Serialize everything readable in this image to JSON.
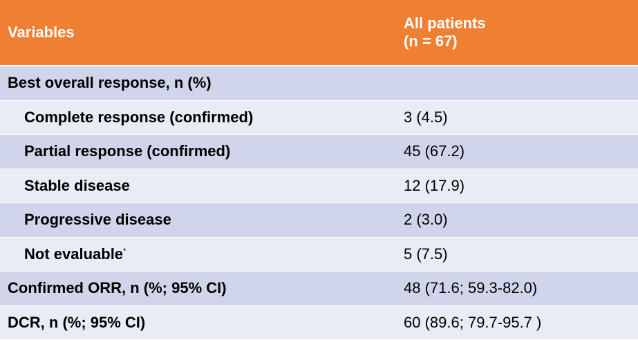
{
  "header": {
    "col1": "Variables",
    "col2_line1": "All patients",
    "col2_line2": "(n = 67)"
  },
  "rows": [
    {
      "label": "Best overall response, n (%)",
      "value": ""
    },
    {
      "label": "Complete response (confirmed)",
      "value": "3 (4.5)"
    },
    {
      "label": "Partial response (confirmed)",
      "value": "45 (67.2)"
    },
    {
      "label": "Stable disease",
      "value": "12 (17.9)"
    },
    {
      "label": "Progressive disease",
      "value": "2 (3.0)"
    },
    {
      "label": "Not evaluable",
      "footnote": "*",
      "value": "5 (7.5)"
    },
    {
      "label": "Confirmed ORR, n (%; 95% CI)",
      "value": "48 (71.6; 59.3-82.0)"
    },
    {
      "label": "DCR, n (%; 95% CI)",
      "value": "60 (89.6; 79.7-95.7 )"
    }
  ],
  "colors": {
    "header_bg": "#ef7f33",
    "row_dark": "#d0d5eb",
    "row_light": "#e9ebf5"
  }
}
